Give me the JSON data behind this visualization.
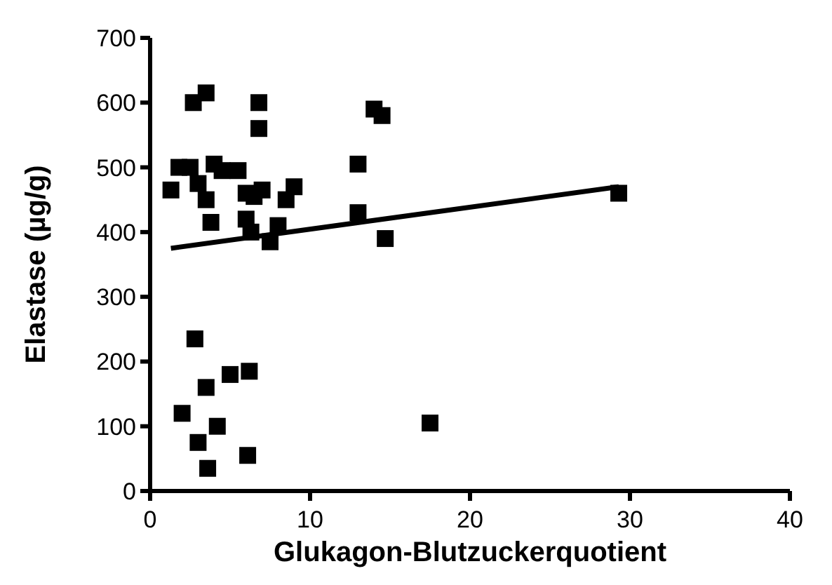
{
  "chart_data": {
    "type": "scatter",
    "xlabel": "Glukagon-Blutzuckerquotient",
    "ylabel": "Elastase (µg/g)",
    "xlim": [
      0,
      40
    ],
    "ylim": [
      0,
      700
    ],
    "xticks": [
      0,
      10,
      20,
      30,
      40
    ],
    "yticks": [
      0,
      100,
      200,
      300,
      400,
      500,
      600,
      700
    ],
    "grid": false,
    "series": [
      {
        "color": "#000000",
        "marker": "square",
        "x": [
          1.3,
          1.8,
          2.5,
          2.7,
          3.5,
          3.0,
          3.5,
          3.8,
          4.0,
          4.5,
          5.5,
          6.0,
          6.5,
          6.0,
          6.3,
          7.0,
          7.5,
          8.0,
          8.5,
          9.0,
          6.8,
          6.8,
          13.0,
          13.0,
          14.0,
          14.5,
          14.7,
          29.3,
          17.5,
          2.0,
          2.8,
          3.0,
          3.5,
          3.6,
          4.2,
          5.0,
          6.2,
          6.1
        ],
        "values": [
          465,
          500,
          500,
          600,
          615,
          475,
          450,
          415,
          505,
          495,
          495,
          460,
          455,
          420,
          400,
          465,
          385,
          410,
          450,
          470,
          600,
          560,
          505,
          430,
          590,
          580,
          390,
          460,
          105,
          120,
          235,
          75,
          160,
          35,
          100,
          180,
          185,
          55
        ]
      },
      {
        "type": "line",
        "color": "#000000",
        "marker": "none",
        "line_style": "solid",
        "x": [
          1.3,
          29.3
        ],
        "values": [
          375,
          470
        ]
      }
    ]
  }
}
